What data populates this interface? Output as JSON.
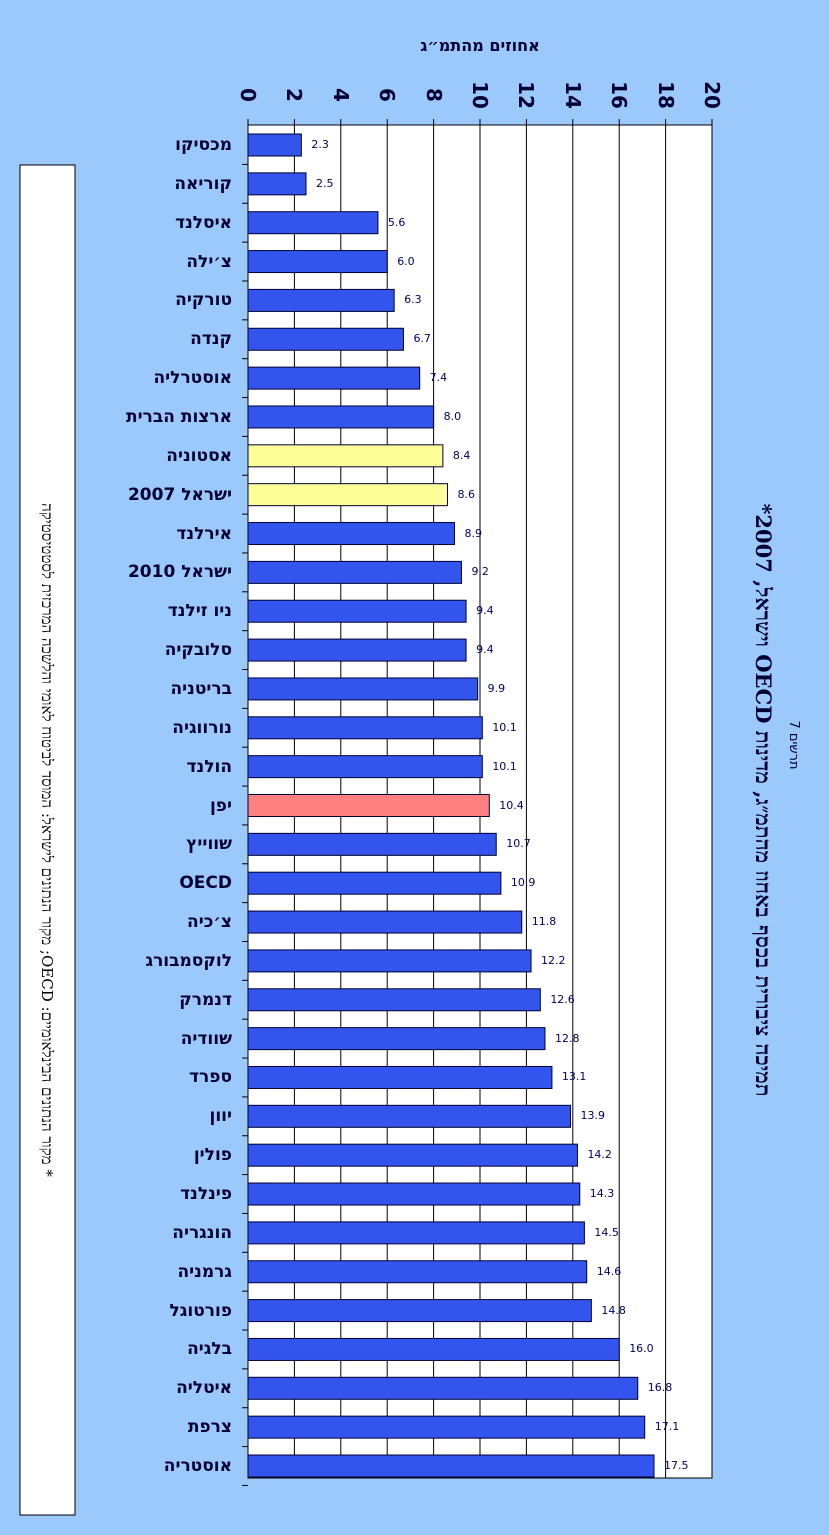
{
  "chart_data": {
    "type": "bar",
    "orientation": "horizontal",
    "title": "תמיכה ציבורית בכסף באחוז מהתמ״ג, מדינות OECD וישראל, 2007*",
    "subtitle": "תרשים 7",
    "note": "* מקור הנתונים הבינלאומיים: OECD; מקור הנתונים לישראל: המוסד לביטוח לאומי והלשכה המרכזית לסטטיסטיקה",
    "x_label": "אחוזים מהתמ״ג",
    "categories": [
      "מכסיקו",
      "קוריאה",
      "איסלנד",
      "צ׳ילה",
      "טורקיה",
      "קנדה",
      "אוסטרליה",
      "ארצות הברית",
      "אסטוניה",
      "ישראל 2007",
      "אירלנד",
      "ישראל 2010",
      "ניו זילנד",
      "סלובקיה",
      "בריטניה",
      "נורווגיה",
      "הולנד",
      "יפן",
      "שווייץ",
      "OECD",
      "צ׳כיה",
      "לוקסמבורג",
      "דנמרק",
      "שוודיה",
      "ספרד",
      "יוון",
      "פולין",
      "פינלנד",
      "הונגריה",
      "גרמניה",
      "פורטוגל",
      "בלגיה",
      "איטליה",
      "צרפת",
      "אוסטריה"
    ],
    "values": [
      2.3,
      2.5,
      5.6,
      6,
      6.3,
      6.7,
      7.4,
      8,
      8.4,
      8.6,
      8.9,
      9.2,
      9.4,
      9.4,
      9.9,
      10.1,
      10.1,
      10.4,
      10.7,
      10.9,
      11.8,
      12.2,
      12.6,
      12.8,
      13.1,
      13.9,
      14.2,
      14.3,
      14.5,
      14.6,
      14.8,
      16,
      16.8,
      17.1,
      17.5
    ],
    "value_labels": [
      "2.3",
      "2.5",
      "5.6",
      "6.0",
      "6.3",
      "6.7",
      "7.4",
      "8.0",
      "8.4",
      "8.6",
      "8.9",
      "9.2",
      "9.4",
      "9.4",
      "9.9",
      "10.1",
      "10.1",
      "10.4",
      "10.7",
      "10.9",
      "11.8",
      "12.2",
      "12.6",
      "12.8",
      "13.1",
      "13.9",
      "14.2",
      "14.3",
      "14.5",
      "14.6",
      "14.8",
      "16.0",
      "16.8",
      "17.1",
      "17.5"
    ],
    "colors": [
      "#3355ee",
      "#3355ee",
      "#3355ee",
      "#3355ee",
      "#3355ee",
      "#3355ee",
      "#3355ee",
      "#3355ee",
      "#ffff99",
      "#ffff99",
      "#3355ee",
      "#3355ee",
      "#3355ee",
      "#3355ee",
      "#3355ee",
      "#3355ee",
      "#3355ee",
      "#ff8080",
      "#3355ee",
      "#3355ee",
      "#3355ee",
      "#3355ee",
      "#3355ee",
      "#3355ee",
      "#3355ee",
      "#3355ee",
      "#3355ee",
      "#3355ee",
      "#3355ee",
      "#3355ee",
      "#3355ee",
      "#3355ee",
      "#3355ee",
      "#3355ee",
      "#3355ee"
    ],
    "xlim": [
      0,
      20
    ],
    "xticks": [
      0,
      2,
      4,
      6,
      8,
      10,
      12,
      14,
      16,
      18,
      20
    ],
    "grid": true
  }
}
